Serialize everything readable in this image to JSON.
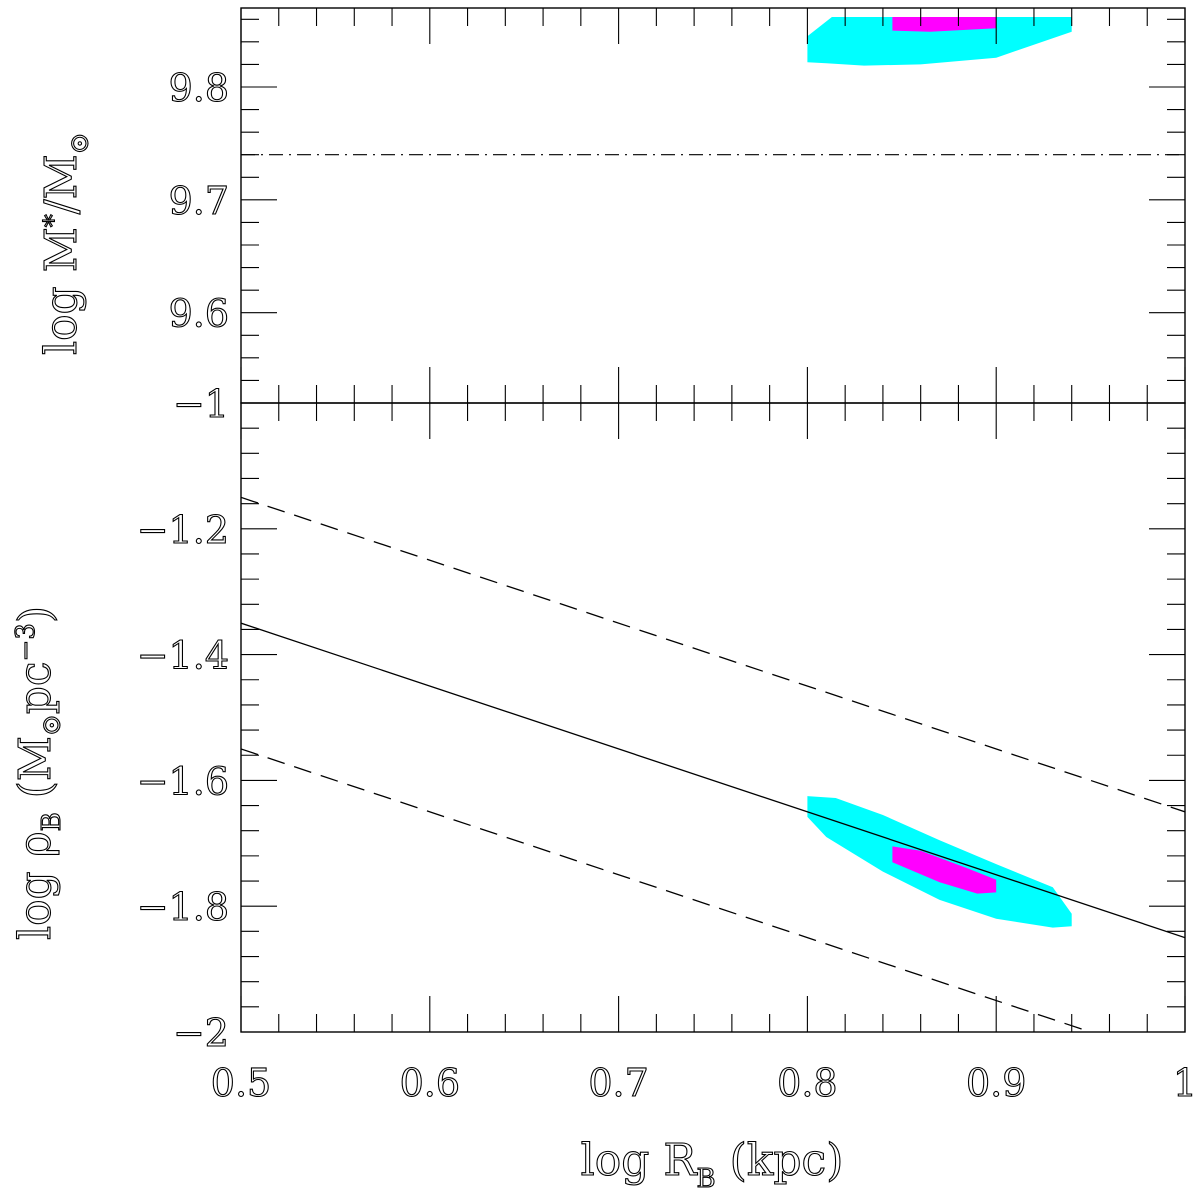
{
  "chart_data": [
    {
      "panel": "top",
      "type": "area",
      "ylabel": "log M*/M⊙",
      "ylabel_parts": {
        "main": "log  M",
        "sub1": "*",
        "slash": "/M",
        "sub2": "⊙"
      },
      "xlim": [
        0.5,
        1.0
      ],
      "ylim": [
        9.52,
        9.87
      ],
      "yticks": [
        9.6,
        9.7,
        9.8
      ],
      "ytick_labels": [
        "9.6",
        "9.7",
        "9.8"
      ],
      "reference_lines": [
        {
          "style": "dash-dot",
          "y": 9.74
        }
      ],
      "regions": [
        {
          "level": "outer",
          "color": "#00ffff",
          "polygon": [
            [
              0.8,
              9.822
            ],
            [
              0.81,
              9.821
            ],
            [
              0.83,
              9.819
            ],
            [
              0.86,
              9.82
            ],
            [
              0.9,
              9.826
            ],
            [
              0.94,
              9.849
            ],
            [
              0.94,
              9.862
            ],
            [
              0.813,
              9.862
            ],
            [
              0.8,
              9.845
            ]
          ]
        },
        {
          "level": "inner",
          "color": "#ff00ff",
          "polygon": [
            [
              0.845,
              9.85
            ],
            [
              0.865,
              9.849
            ],
            [
              0.9,
              9.852
            ],
            [
              0.9,
              9.862
            ],
            [
              0.845,
              9.862
            ]
          ]
        }
      ]
    },
    {
      "panel": "bottom",
      "type": "area",
      "xlabel": "log R_B (kpc)",
      "xlabel_parts": {
        "main": "log  R",
        "sub": "B",
        "rest": " (kpc)"
      },
      "ylabel": "log ρ_B (M⊙pc⁻³)",
      "ylabel_parts": {
        "main": "log  ρ",
        "sub": "B",
        "open": "  (M",
        "sub2": "⊙",
        "mid": "pc",
        "sup": "−3",
        "close": ")"
      },
      "xlim": [
        0.5,
        1.0
      ],
      "ylim": [
        -2.0,
        -1.0
      ],
      "xticks": [
        0.5,
        0.6,
        0.7,
        0.8,
        0.9,
        1.0
      ],
      "xtick_labels": [
        "0.5",
        "0.6",
        "0.7",
        "0.8",
        "0.9",
        "1"
      ],
      "yticks": [
        -2.0,
        -1.8,
        -1.6,
        -1.4,
        -1.2,
        -1.0
      ],
      "ytick_labels": [
        "−2",
        "−1.8",
        "−1.6",
        "−1.4",
        "−1.2",
        "−1"
      ],
      "lines": [
        {
          "style": "solid",
          "x": [
            0.5,
            1.0
          ],
          "y": [
            -1.35,
            -1.85
          ]
        },
        {
          "style": "dashed",
          "x": [
            0.5,
            1.0
          ],
          "y": [
            -1.15,
            -1.65
          ]
        },
        {
          "style": "dashed",
          "x": [
            0.5,
            1.0
          ],
          "y": [
            -1.55,
            -2.05
          ]
        }
      ],
      "regions": [
        {
          "level": "outer",
          "color": "#00ffff",
          "polygon": [
            [
              0.8,
              -1.625
            ],
            [
              0.815,
              -1.628
            ],
            [
              0.84,
              -1.655
            ],
            [
              0.87,
              -1.695
            ],
            [
              0.9,
              -1.733
            ],
            [
              0.93,
              -1.77
            ],
            [
              0.94,
              -1.812
            ],
            [
              0.94,
              -1.832
            ],
            [
              0.93,
              -1.834
            ],
            [
              0.9,
              -1.82
            ],
            [
              0.87,
              -1.79
            ],
            [
              0.84,
              -1.745
            ],
            [
              0.81,
              -1.69
            ],
            [
              0.8,
              -1.658
            ]
          ]
        },
        {
          "level": "inner",
          "color": "#ff00ff",
          "polygon": [
            [
              0.845,
              -1.705
            ],
            [
              0.86,
              -1.712
            ],
            [
              0.885,
              -1.74
            ],
            [
              0.9,
              -1.758
            ],
            [
              0.9,
              -1.778
            ],
            [
              0.89,
              -1.78
            ],
            [
              0.87,
              -1.762
            ],
            [
              0.845,
              -1.73
            ]
          ]
        }
      ]
    }
  ]
}
